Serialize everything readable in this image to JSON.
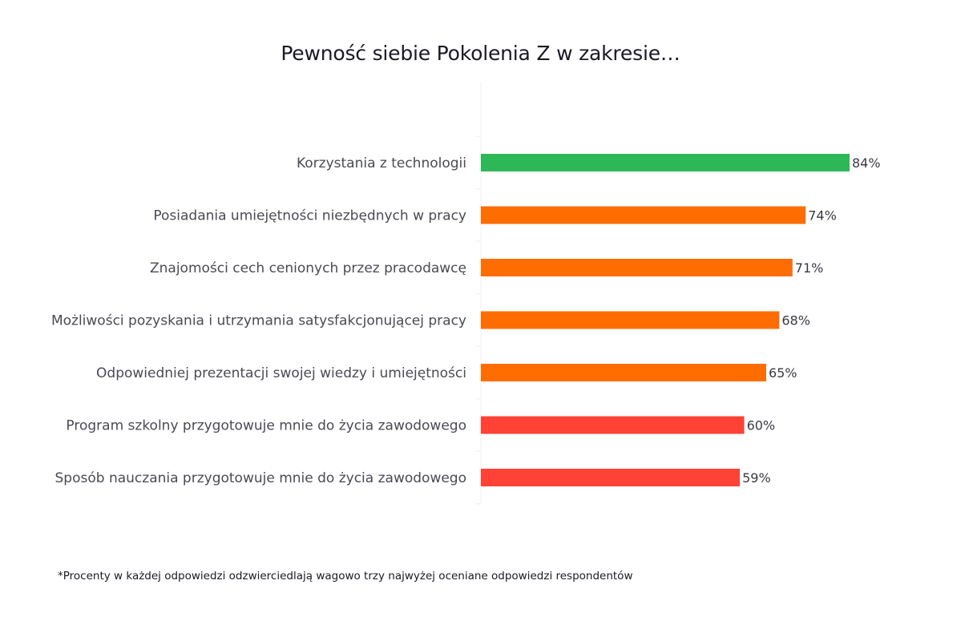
{
  "chart_data": {
    "type": "bar",
    "orientation": "horizontal",
    "title": "Pewność siebie Pokolenia Z w zakresie…",
    "categories": [
      "Korzystania z technologii",
      "Posiadania umiejętności niezbędnych w pracy",
      "Znajomości cech cenionych przez pracodawcę",
      "Możliwości pozyskania i utrzymania satysfakcjonującej pracy",
      "Odpowiedniej prezentacji swojej wiedzy i umiejętności",
      "Program szkolny przygotowuje mnie do życia zawodowego",
      "Sposób nauczania przygotowuje mnie do życia zawodowego"
    ],
    "values": [
      84,
      74,
      71,
      68,
      65,
      60,
      59
    ],
    "value_labels": [
      "84%",
      "74%",
      "71%",
      "68%",
      "65%",
      "60%",
      "59%"
    ],
    "bar_colors": [
      "#2db757",
      "#ff6d00",
      "#ff6d00",
      "#ff6d00",
      "#ff6d00",
      "#ff4136",
      "#ff4136"
    ],
    "xlim": [
      0,
      100
    ],
    "grid": false,
    "legend": "none"
  },
  "footnote": "*Procenty w każdej odpowiedzi odzwierciedlają wagowo trzy najwyżej oceniane odpowiedzi respondentów"
}
